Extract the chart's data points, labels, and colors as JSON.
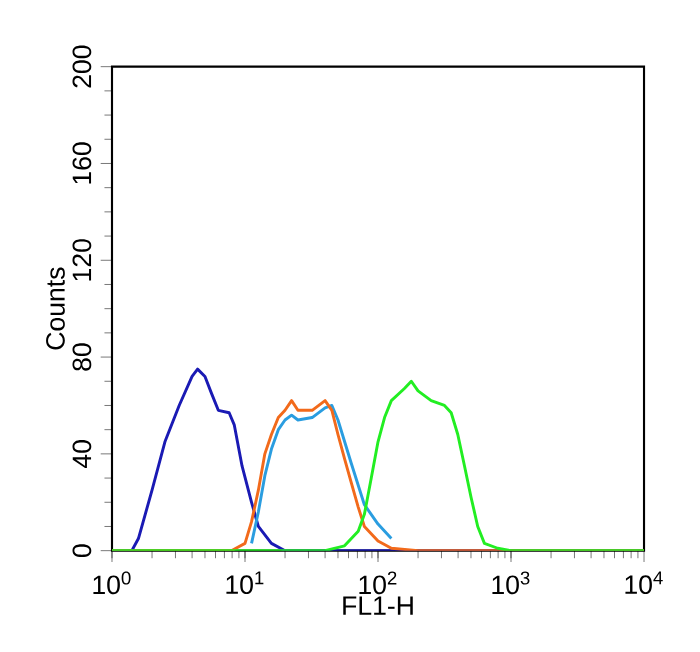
{
  "chart_data": {
    "type": "line",
    "xlabel": "FL1-H",
    "ylabel": "Counts",
    "log": "x",
    "grid": false,
    "marker": "none",
    "line_style": "solid",
    "xlim": [
      1,
      10000
    ],
    "ylim": [
      0,
      200
    ],
    "xticks": [
      {
        "value": 1,
        "label": "10$^{0}$"
      },
      {
        "value": 10,
        "label": "10$^{1}$"
      },
      {
        "value": 100,
        "label": "10$^{2}$"
      },
      {
        "value": 1000,
        "label": "10$^{3}$"
      },
      {
        "value": 10000,
        "label": "10$^{4}$"
      }
    ],
    "yticks": [
      0,
      40,
      80,
      120,
      160,
      200
    ],
    "series": [
      {
        "color": "#1a1ab4",
        "x": [
          1,
          1.41,
          1.58,
          2,
          2.5,
          3.2,
          4,
          4.4,
          5,
          5.6,
          6.3,
          7.6,
          8.3,
          9.5,
          11.2,
          12.6,
          15.8,
          20,
          100,
          10000
        ],
        "values": [
          0,
          0,
          5,
          25,
          45,
          60,
          72,
          75,
          72,
          65,
          58,
          57,
          52,
          35,
          20,
          10,
          3,
          0,
          0,
          0
        ]
      },
      {
        "color": "#2a9de0",
        "x": [
          11.2,
          12.6,
          14.1,
          15.8,
          17.8,
          20,
          22.4,
          25,
          32,
          40,
          45,
          50,
          63,
          79,
          100,
          126
        ],
        "values": [
          3,
          16,
          31,
          42,
          50,
          54,
          56,
          54,
          55,
          59,
          60,
          54,
          36,
          19,
          11,
          5
        ]
      },
      {
        "color": "#f26a1b",
        "x": [
          1,
          7.9,
          10,
          11.2,
          12.6,
          14.1,
          15.8,
          17.8,
          20,
          22.4,
          25,
          32,
          40,
          45,
          50,
          56,
          63,
          71,
          79,
          100,
          126,
          200,
          10000
        ],
        "values": [
          0,
          0,
          3,
          12,
          25,
          40,
          48,
          55,
          58,
          62,
          58,
          58,
          62,
          58,
          48,
          38,
          28,
          18,
          10,
          4,
          1,
          0,
          0
        ]
      },
      {
        "color": "#22ee22",
        "x": [
          1,
          40,
          56,
          71,
          79,
          89,
          100,
          112,
          126,
          158,
          178,
          200,
          251,
          316,
          355,
          398,
          447,
          501,
          562,
          631,
          794,
          1000,
          10000
        ],
        "values": [
          0,
          0,
          2,
          8,
          15,
          30,
          45,
          55,
          62,
          67,
          70,
          66,
          62,
          60,
          57,
          48,
          35,
          22,
          10,
          3,
          1,
          0,
          0
        ]
      }
    ]
  }
}
